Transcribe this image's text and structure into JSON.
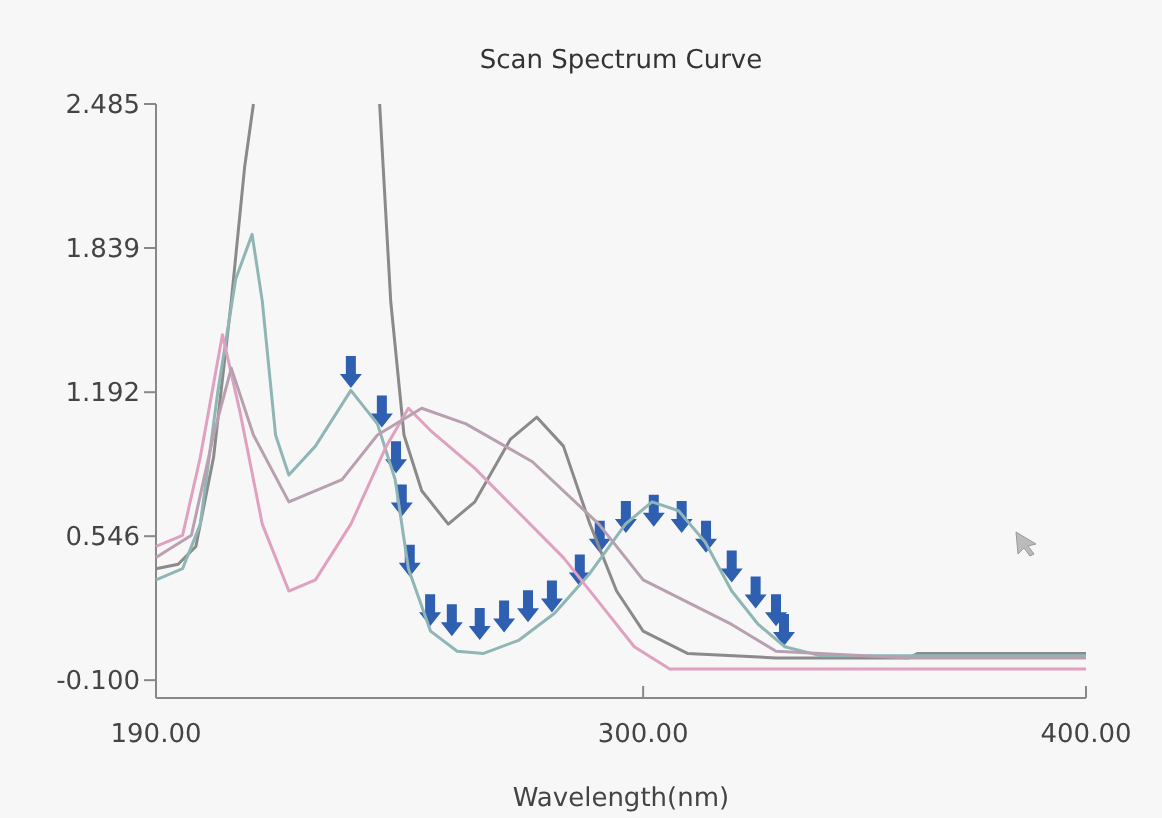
{
  "chart_data": {
    "type": "line",
    "title": "Scan Spectrum Curve",
    "xlabel": "Wavelength(nm)",
    "xlim": [
      190,
      400
    ],
    "ylim": [
      -0.18,
      2.485
    ],
    "xticks": [
      {
        "value": 190,
        "label": "190.00"
      },
      {
        "value": 300,
        "label": "300.00"
      },
      {
        "value": 400,
        "label": "400.00"
      }
    ],
    "yticks": [
      {
        "value": -0.1,
        "label": "-0.100"
      },
      {
        "value": 0.546,
        "label": "0.546"
      },
      {
        "value": 1.192,
        "label": "1.192"
      },
      {
        "value": 1.839,
        "label": "1.839"
      },
      {
        "value": 2.485,
        "label": "2.485"
      }
    ],
    "grid": false,
    "marker": "none",
    "line_style": "solid",
    "series": [
      {
        "color": "#8a8a8a",
        "x": [
          190,
          195,
          199,
          203,
          207,
          210,
          212,
          225,
          240.5,
          243,
          246,
          250,
          256,
          262,
          270,
          276,
          282,
          288,
          294,
          300,
          310,
          330,
          360,
          362,
          400
        ],
        "values": [
          0.4,
          0.42,
          0.5,
          0.9,
          1.6,
          2.2,
          2.485,
          null,
          2.485,
          1.6,
          1.0,
          0.75,
          0.6,
          0.7,
          0.98,
          1.08,
          0.95,
          0.6,
          0.3,
          0.12,
          0.02,
          0.0,
          0.0,
          0.02,
          0.02
        ]
      },
      {
        "color": "#8fb5b5",
        "x": [
          190,
          196,
          200,
          204,
          208,
          211.7,
          214,
          217,
          220,
          226,
          234,
          240,
          244,
          247,
          252,
          258,
          264,
          272,
          280,
          288,
          296,
          302,
          308,
          314,
          320,
          326,
          332,
          340,
          360,
          400
        ],
        "values": [
          0.35,
          0.4,
          0.6,
          1.2,
          1.7,
          1.9,
          1.6,
          1.0,
          0.82,
          0.95,
          1.2,
          1.05,
          0.8,
          0.4,
          0.12,
          0.03,
          0.02,
          0.08,
          0.2,
          0.38,
          0.6,
          0.7,
          0.66,
          0.52,
          0.3,
          0.15,
          0.05,
          0.01,
          0.01,
          0.01
        ]
      },
      {
        "color": "#e0a0c0",
        "x": [
          190,
          196,
          200,
          205,
          209,
          214,
          220,
          226,
          234,
          242,
          247,
          252,
          262,
          272,
          282,
          290,
          298,
          306,
          400
        ],
        "values": [
          0.5,
          0.55,
          0.9,
          1.45,
          1.1,
          0.6,
          0.3,
          0.35,
          0.6,
          0.95,
          1.12,
          1.02,
          0.85,
          0.65,
          0.45,
          0.25,
          0.05,
          -0.05,
          -0.05
        ]
      },
      {
        "color": "#b8a0b0",
        "x": [
          190,
          198,
          203,
          207,
          212,
          220,
          232,
          240,
          250,
          260,
          275,
          290,
          300,
          310,
          320,
          330,
          360,
          400
        ],
        "values": [
          0.45,
          0.55,
          1.0,
          1.3,
          1.0,
          0.7,
          0.8,
          1.0,
          1.12,
          1.05,
          0.88,
          0.6,
          0.35,
          0.25,
          0.15,
          0.03,
          0.0,
          0.0
        ]
      }
    ]
  }
}
